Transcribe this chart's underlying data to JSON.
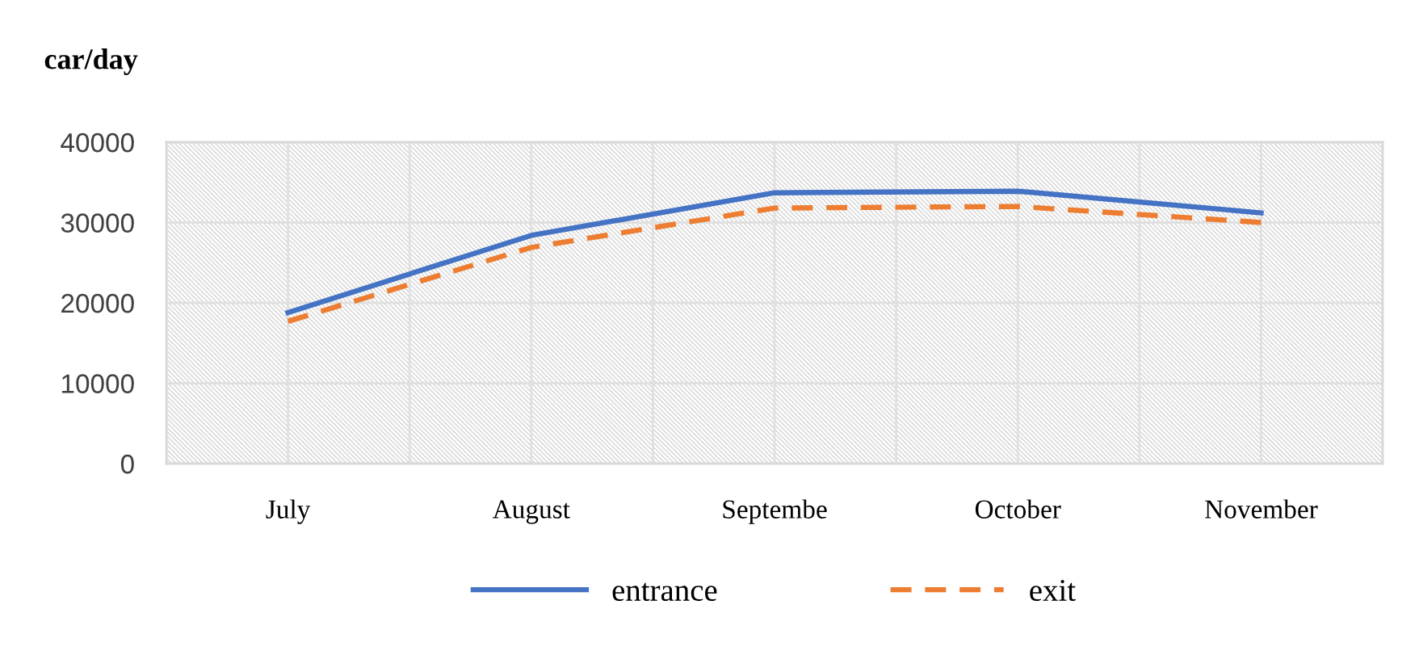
{
  "chart_data": {
    "type": "line",
    "ylabel": "car/day",
    "categories": [
      "July",
      "August",
      "Septembe",
      "October",
      "November"
    ],
    "series": [
      {
        "name": "entrance",
        "color": "#4472c4",
        "line_style": "solid",
        "values": [
          18800,
          28400,
          33700,
          33900,
          31200
        ]
      },
      {
        "name": "exit",
        "color": "#ed7d31",
        "line_style": "dashed",
        "values": [
          17700,
          26900,
          31800,
          32000,
          30000
        ]
      }
    ],
    "ylim": [
      0,
      40000
    ],
    "yticks": [
      0,
      10000,
      20000,
      30000,
      40000
    ],
    "grid": true,
    "legend": "bottom"
  }
}
